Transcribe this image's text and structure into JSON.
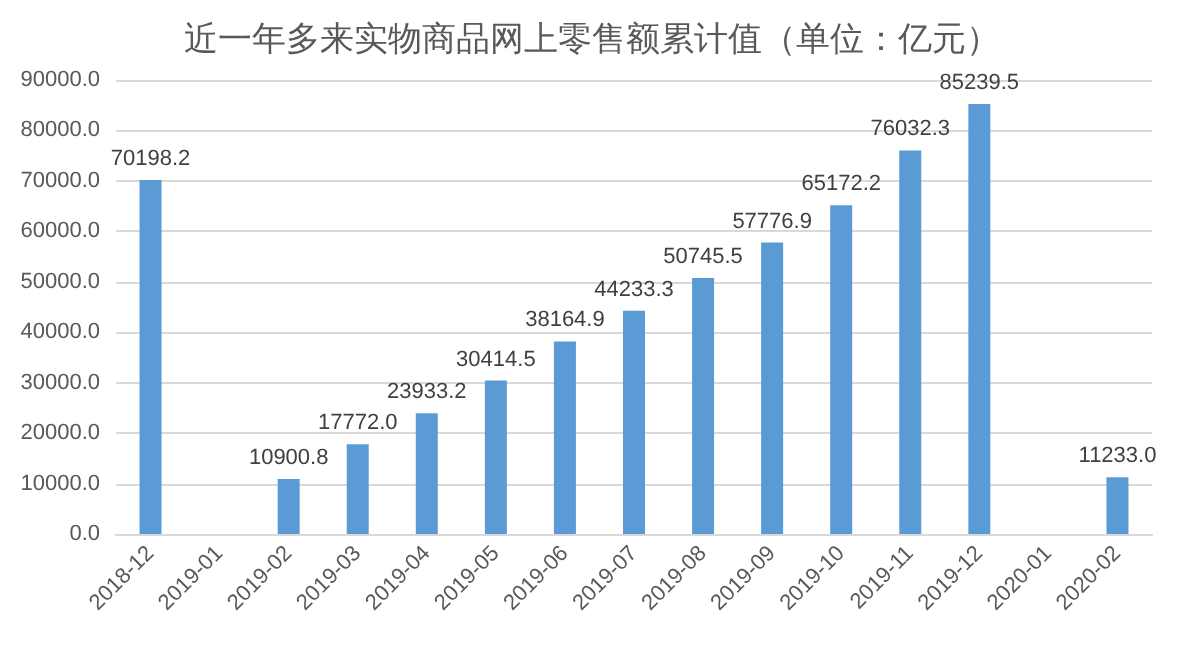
{
  "chart_data": {
    "type": "bar",
    "title": "近一年多来实物商品网上零售额累计值（单位：亿元）",
    "categories": [
      "2018-12",
      "2019-01",
      "2019-02",
      "2019-03",
      "2019-04",
      "2019-05",
      "2019-06",
      "2019-07",
      "2019-08",
      "2019-09",
      "2019-10",
      "2019-11",
      "2019-12",
      "2020-01",
      "2020-02"
    ],
    "values": [
      70198.2,
      null,
      10900.8,
      17772.0,
      23933.2,
      30414.5,
      38164.9,
      44233.3,
      50745.5,
      57776.9,
      65172.2,
      76032.3,
      85239.5,
      null,
      11233.0
    ],
    "value_labels": [
      "70198.2",
      null,
      "10900.8",
      "17772.0",
      "23933.2",
      "30414.5",
      "38164.9",
      "44233.3",
      "50745.5",
      "57776.9",
      "65172.2",
      "76032.3",
      "85239.5",
      null,
      "11233.0"
    ],
    "color": "#5b9bd5",
    "ylim": [
      0,
      90000
    ],
    "yticks": [
      {
        "value": 0,
        "label": "0.0"
      },
      {
        "value": 10000,
        "label": "10000.0"
      },
      {
        "value": 20000,
        "label": "20000.0"
      },
      {
        "value": 30000,
        "label": "30000.0"
      },
      {
        "value": 40000,
        "label": "40000.0"
      },
      {
        "value": 50000,
        "label": "50000.0"
      },
      {
        "value": 60000,
        "label": "60000.0"
      },
      {
        "value": 70000,
        "label": "70000.0"
      },
      {
        "value": 80000,
        "label": "80000.0"
      },
      {
        "value": 90000,
        "label": "90000.0"
      }
    ],
    "grid": "y"
  }
}
